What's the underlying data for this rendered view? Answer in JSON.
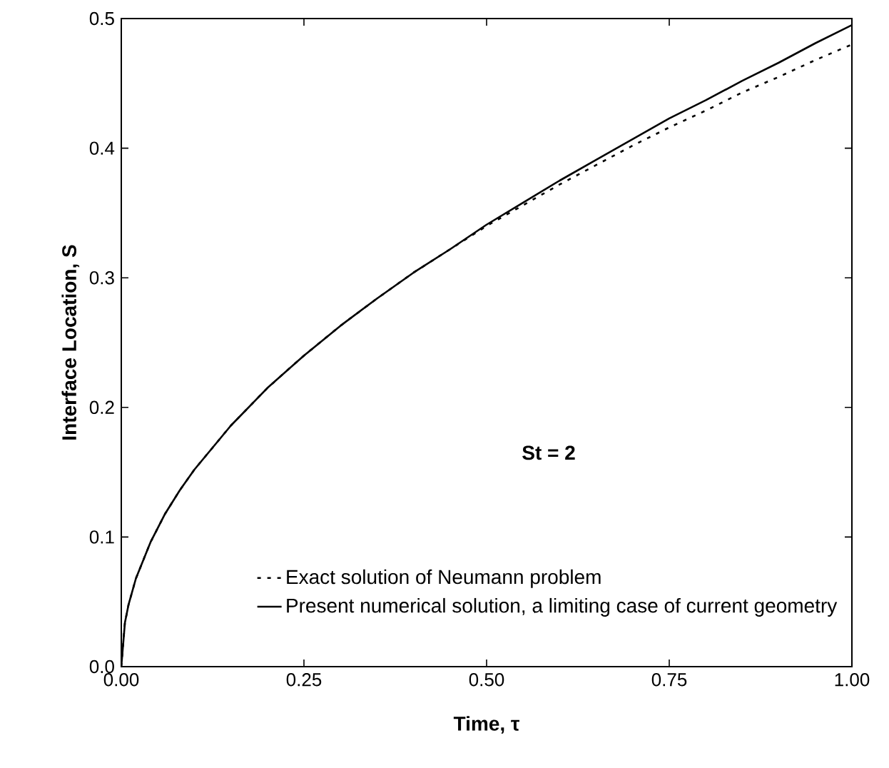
{
  "chart_data": {
    "type": "line",
    "xlabel": "Time, τ",
    "ylabel": "Interface Location, S",
    "x": [
      0,
      0.005,
      0.01,
      0.02,
      0.04,
      0.06,
      0.08,
      0.1,
      0.15,
      0.2,
      0.25,
      0.3,
      0.35,
      0.4,
      0.45,
      0.5,
      0.55,
      0.6,
      0.65,
      0.7,
      0.75,
      0.8,
      0.85,
      0.9,
      0.95,
      1.0
    ],
    "series": [
      {
        "name": "Exact solution of Neumann problem",
        "color": "#000000",
        "line_style": "dotted",
        "values": [
          0,
          0.034,
          0.048,
          0.068,
          0.096,
          0.118,
          0.136,
          0.152,
          0.186,
          0.215,
          0.24,
          0.263,
          0.284,
          0.304,
          0.322,
          0.34,
          0.356,
          0.372,
          0.387,
          0.402,
          0.416,
          0.429,
          0.443,
          0.455,
          0.468,
          0.48
        ]
      },
      {
        "name": "Present numerical solution, a limiting case of current geometry",
        "color": "#000000",
        "line_style": "solid",
        "values": [
          0,
          0.034,
          0.048,
          0.068,
          0.096,
          0.118,
          0.136,
          0.152,
          0.186,
          0.215,
          0.24,
          0.263,
          0.284,
          0.304,
          0.322,
          0.341,
          0.358,
          0.375,
          0.391,
          0.407,
          0.423,
          0.437,
          0.452,
          0.466,
          0.481,
          0.495
        ]
      }
    ],
    "xlim": [
      0,
      1
    ],
    "ylim": [
      0,
      0.5
    ],
    "xticks": [
      {
        "value": 0,
        "label": "0.00"
      },
      {
        "value": 0.25,
        "label": "0.25"
      },
      {
        "value": 0.5,
        "label": "0.50"
      },
      {
        "value": 0.75,
        "label": "0.75"
      },
      {
        "value": 1,
        "label": "1.00"
      }
    ],
    "yticks": [
      {
        "value": 0,
        "label": "0.0"
      },
      {
        "value": 0.1,
        "label": "0.1"
      },
      {
        "value": 0.2,
        "label": "0.2"
      },
      {
        "value": 0.3,
        "label": "0.3"
      },
      {
        "value": 0.4,
        "label": "0.4"
      },
      {
        "value": 0.5,
        "label": "0.5"
      }
    ],
    "annotations": [
      "St = 2"
    ],
    "legend": "bottom right",
    "grid": false,
    "marker": "none"
  }
}
